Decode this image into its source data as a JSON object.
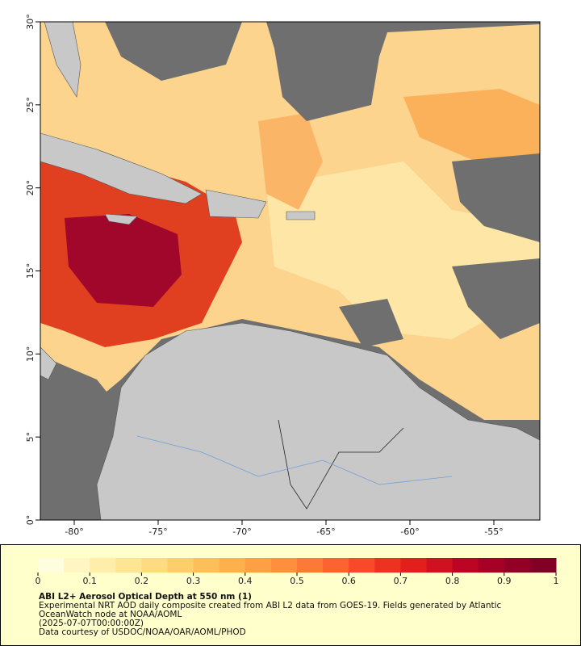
{
  "map": {
    "lonlim": [
      -82.02,
      -52.26
    ],
    "latlim": [
      0,
      30
    ],
    "xticks": [
      {
        "value": -80,
        "label": "-80°"
      },
      {
        "value": -75,
        "label": "-75°"
      },
      {
        "value": -70,
        "label": "-70°"
      },
      {
        "value": -65,
        "label": "-65°"
      },
      {
        "value": -60,
        "label": "-60°"
      },
      {
        "value": -55,
        "label": "-55°"
      }
    ],
    "yticks": [
      {
        "value": 0,
        "label": "0°"
      },
      {
        "value": 5,
        "label": "5°"
      },
      {
        "value": 10,
        "label": "10°"
      },
      {
        "value": 15,
        "label": "15°"
      },
      {
        "value": 20,
        "label": "20°"
      },
      {
        "value": 25,
        "label": "25°"
      },
      {
        "value": 30,
        "label": "30°"
      }
    ]
  },
  "colorbar": {
    "lim": [
      0,
      1
    ],
    "ticks": [
      0,
      0.1,
      0.2,
      0.3,
      0.4,
      0.5,
      0.6,
      0.7,
      0.8,
      0.9,
      1
    ],
    "colors": [
      "#fffde0",
      "#fff6c4",
      "#ffedaa",
      "#fee594",
      "#fedb7e",
      "#fece6a",
      "#febf5a",
      "#feb04d",
      "#fda044",
      "#fd8f3d",
      "#fc7a35",
      "#fc632f",
      "#f84a28",
      "#ee3222",
      "#e31f1d",
      "#d0111f",
      "#bc0424",
      "#a60026",
      "#920026",
      "#800026"
    ]
  },
  "caption": {
    "title": "ABI L2+ Aerosol Optical Depth at 550 nm (1)",
    "lines": [
      "Experimental NRT AOD daily composite created from ABI L2 data from GOES-19. Fields generated by Atlantic",
      "OceanWatch node at NOAA/AOML",
      "(2025-07-07T00:00:00Z)",
      "Data courtesy of USDOC/NOAA/OAR/AOML/PHOD"
    ]
  }
}
